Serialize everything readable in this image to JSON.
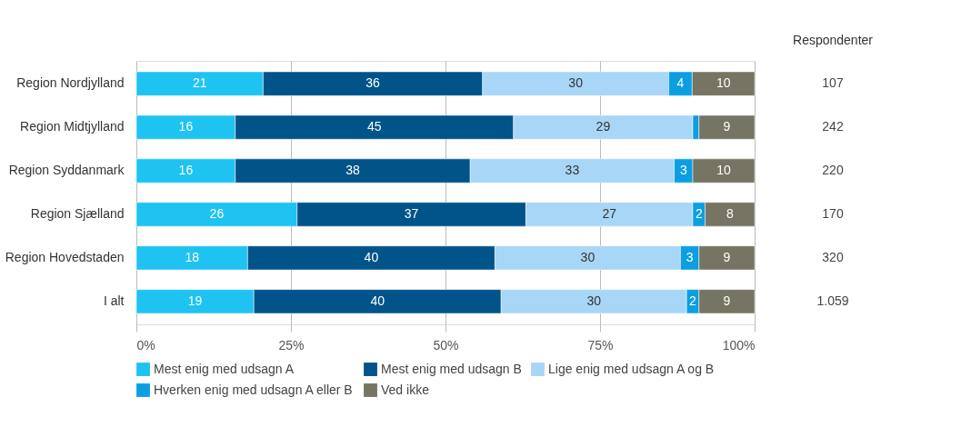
{
  "chart_data": {
    "type": "bar",
    "orientation": "horizontal",
    "stacked": true,
    "categories": [
      "Region Nordjylland",
      "Region Midtjylland",
      "Region Syddanmark",
      "Region Sjælland",
      "Region Hovedstaden",
      "I alt"
    ],
    "series": [
      {
        "name": "Mest enig med udsagn A",
        "color": "#1fc3f2",
        "values": [
          20.5,
          16,
          16,
          26,
          18,
          19
        ],
        "value_labels": [
          "21",
          "16",
          "16",
          "26",
          "18",
          "19"
        ]
      },
      {
        "name": "Mest enig med udsagn B",
        "color": "#00548a",
        "values": [
          35.5,
          45,
          38,
          37,
          40,
          40
        ],
        "value_labels": [
          "36",
          "45",
          "38",
          "37",
          "40",
          "40"
        ]
      },
      {
        "name": "Lige enig med udsagn A og B",
        "color": "#a8d6f6",
        "values": [
          30.1,
          29,
          33,
          27,
          30,
          30
        ],
        "value_labels": [
          "30",
          "29",
          "33",
          "27",
          "30",
          "30"
        ]
      },
      {
        "name": "Hverken enig med udsagn A eller B",
        "color": "#0b9fe2",
        "values": [
          3.8,
          1,
          3,
          2,
          3,
          2
        ],
        "value_labels": [
          "4",
          null,
          "3",
          "2",
          "3",
          "2"
        ]
      },
      {
        "name": "Ved ikke",
        "color": "#767462",
        "values": [
          10.1,
          9,
          10,
          8,
          9,
          9
        ],
        "value_labels": [
          "10",
          "9",
          "10",
          "8",
          "9",
          "9"
        ]
      }
    ],
    "xlim": [
      0,
      100
    ],
    "xticks": [
      {
        "value": 0,
        "label": "0%"
      },
      {
        "value": 25,
        "label": "25%"
      },
      {
        "value": 50,
        "label": "50%"
      },
      {
        "value": 75,
        "label": "75%"
      },
      {
        "value": 100,
        "label": "100%"
      }
    ],
    "grid": "x",
    "legend": "bottom",
    "annotations": [
      "Respondenter",
      "107",
      "242",
      "220",
      "170",
      "320",
      "1.059"
    ]
  }
}
